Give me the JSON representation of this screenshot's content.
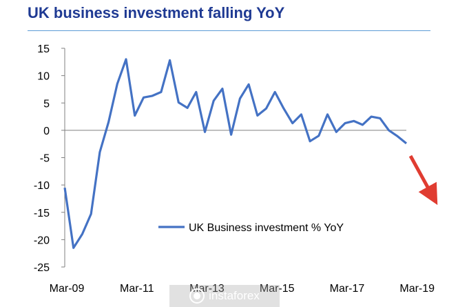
{
  "title": "UK business investment falling YoY",
  "watermark": {
    "text": "instaforex",
    "icon": "instaforex-logo-icon"
  },
  "colors": {
    "title": "#1f3a93",
    "series": "#4472c4",
    "arrow": "#e03c31",
    "axis": "#7f7f7f"
  },
  "chart_data": {
    "type": "line",
    "title": "UK business investment falling YoY",
    "xlabel": "",
    "ylabel": "",
    "ylim": [
      -25,
      15
    ],
    "yticks": [
      15,
      10,
      5,
      0,
      -5,
      -10,
      -15,
      -20,
      -25
    ],
    "ytick_labels": [
      "15",
      "10",
      "5",
      "0",
      "-5",
      "-10",
      "-15",
      "-20",
      "-25"
    ],
    "xtick_labels": [
      "Mar-09",
      "Mar-11",
      "Mar-13",
      "Mar-15",
      "Mar-17",
      "Mar-19"
    ],
    "grid": false,
    "legend": {
      "position": "bottom-right",
      "entries": [
        "UK Business investment % YoY"
      ]
    },
    "series": [
      {
        "name": "UK Business investment % YoY",
        "x": [
          "Mar-09",
          "Jun-09",
          "Sep-09",
          "Dec-09",
          "Mar-10",
          "Jun-10",
          "Sep-10",
          "Dec-10",
          "Mar-11",
          "Jun-11",
          "Sep-11",
          "Dec-11",
          "Mar-12",
          "Jun-12",
          "Sep-12",
          "Dec-12",
          "Mar-13",
          "Jun-13",
          "Sep-13",
          "Dec-13",
          "Mar-14",
          "Jun-14",
          "Sep-14",
          "Dec-14",
          "Mar-15",
          "Jun-15",
          "Sep-15",
          "Dec-15",
          "Mar-16",
          "Jun-16",
          "Sep-16",
          "Dec-16",
          "Mar-17",
          "Jun-17",
          "Sep-17",
          "Dec-17",
          "Mar-18",
          "Jun-18",
          "Sep-18",
          "Dec-18"
        ],
        "values": [
          -10.5,
          -21.5,
          -19,
          -15.3,
          -4,
          1.5,
          8.5,
          13,
          2.7,
          6,
          6.3,
          7,
          12.8,
          5.1,
          4.1,
          7,
          -0.3,
          5.4,
          7.6,
          -0.8,
          5.8,
          8.4,
          2.7,
          4,
          7,
          4,
          1.3,
          2.9,
          -2,
          -1,
          2.9,
          -0.3,
          1.3,
          1.7,
          1,
          2.5,
          2.2,
          0,
          -1.1,
          -2.4
        ]
      }
    ],
    "annotations": [
      {
        "type": "arrow",
        "meaning": "downward trend continues"
      }
    ]
  }
}
